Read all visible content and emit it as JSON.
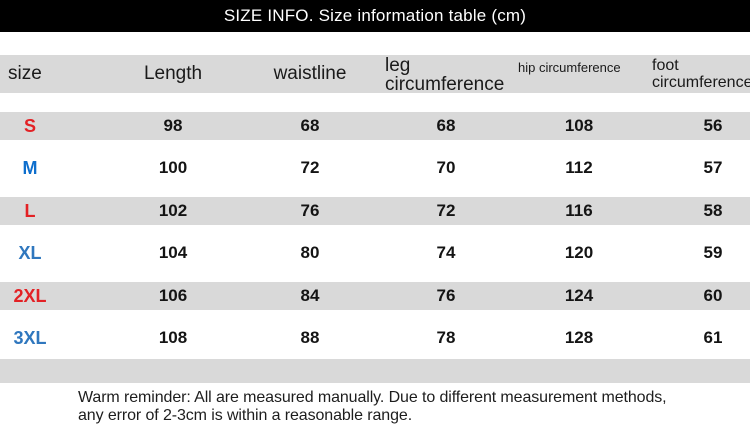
{
  "title": "SIZE INFO. Size information table (cm)",
  "chart_data": {
    "type": "table",
    "title": "SIZE INFO. Size information table (cm)",
    "unit": "cm",
    "columns": [
      "size",
      "Length",
      "waistline",
      "leg circumference",
      "hip circumference",
      "foot circumference"
    ],
    "rows": [
      [
        "S",
        98,
        68,
        68,
        108,
        56
      ],
      [
        "M",
        100,
        72,
        70,
        112,
        57
      ],
      [
        "L",
        102,
        76,
        72,
        116,
        58
      ],
      [
        "XL",
        104,
        80,
        74,
        120,
        59
      ],
      [
        "2XL",
        106,
        84,
        76,
        124,
        60
      ],
      [
        "3XL",
        108,
        88,
        78,
        128,
        61
      ]
    ]
  },
  "table": {
    "headers": {
      "size": "size",
      "length": "Length",
      "waistline": "waistline",
      "leg": "leg circumference",
      "hip": "hip circumference",
      "foot": "foot circumference"
    },
    "rows": [
      {
        "size": "S",
        "size_color": "#e32125",
        "values": [
          "98",
          "68",
          "68",
          "108",
          "56"
        ]
      },
      {
        "size": "M",
        "size_color": "#0d6ecd",
        "values": [
          "100",
          "72",
          "70",
          "112",
          "57"
        ]
      },
      {
        "size": "L",
        "size_color": "#e32125",
        "values": [
          "102",
          "76",
          "72",
          "116",
          "58"
        ]
      },
      {
        "size": "XL",
        "size_color": "#2f77be",
        "values": [
          "104",
          "80",
          "74",
          "120",
          "59"
        ]
      },
      {
        "size": "2XL",
        "size_color": "#e32125",
        "values": [
          "106",
          "84",
          "76",
          "124",
          "60"
        ]
      },
      {
        "size": "3XL",
        "size_color": "#2f77be",
        "values": [
          "108",
          "88",
          "78",
          "128",
          "61"
        ]
      }
    ]
  },
  "footer": {
    "line1": "Warm reminder: All are measured manually. Due to different measurement methods,",
    "line2": "any error of 2-3cm is within a reasonable range."
  },
  "colors": {
    "title_bg": "#000000",
    "title_text": "#ffffff",
    "stripe": "#d9d9d9",
    "size_red": "#e32125",
    "size_blue_m": "#0d6ecd",
    "size_blue_xl": "#2f77be",
    "value_text": "#141414"
  }
}
